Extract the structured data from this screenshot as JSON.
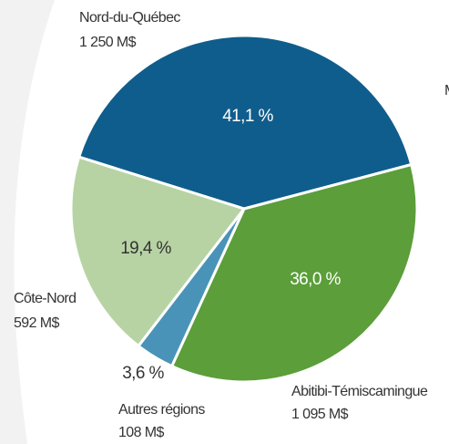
{
  "chart_data": {
    "type": "pie",
    "categories": [
      "Nord-du-Québec",
      "Abitibi-Témiscamingue",
      "Autres régions",
      "Côte-Nord"
    ],
    "values": [
      41.1,
      36.0,
      3.6,
      19.4
    ],
    "value_labels": [
      "41,1 %",
      "36,0 %",
      "3,6 %",
      "19,4 %"
    ],
    "amount_labels": [
      "1 250 M$",
      "1 095 M$",
      "108 M$",
      "592 M$"
    ],
    "colors": [
      "#0f5d8c",
      "#5b9e3a",
      "#4a93b8",
      "#b7d3a3"
    ],
    "annotations": [
      "M"
    ]
  }
}
